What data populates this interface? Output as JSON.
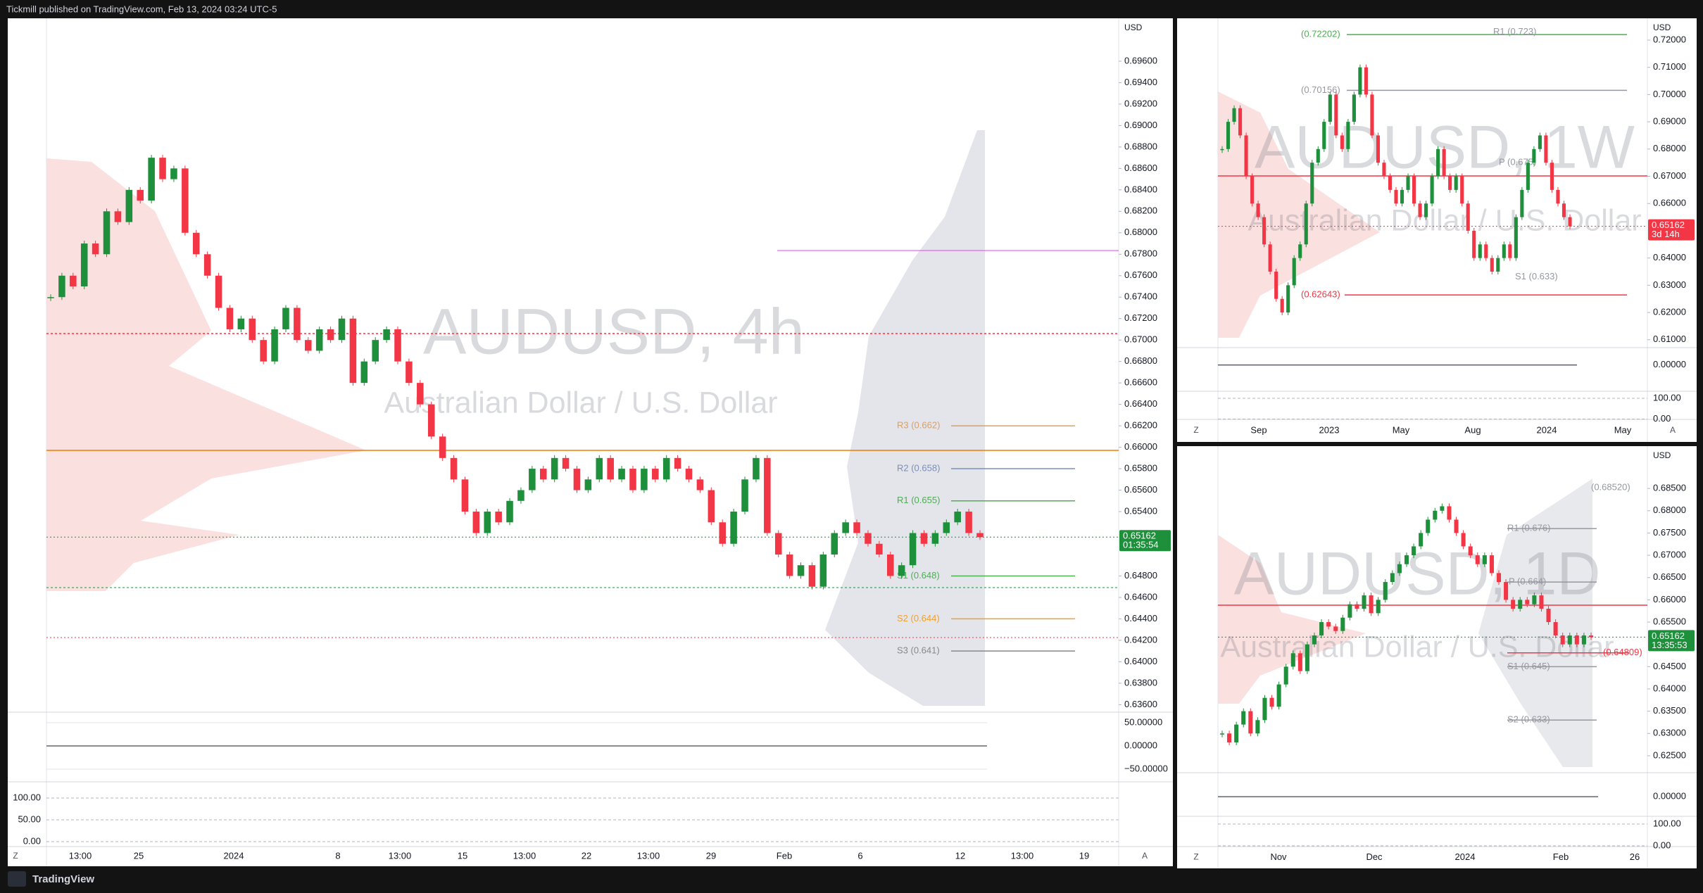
{
  "header": {
    "title": "Tickmill published on TradingView.com, Feb 13, 2024 03:24 UTC-5"
  },
  "footer": {
    "brand": "TradingView"
  },
  "up_color": "#1e8f3a",
  "down_color": "#f23645",
  "panels": [
    {
      "symbol": "AUDUSD, 4h",
      "description": "Australian Dollar / U.S. Dollar",
      "currency": "USD",
      "ylim": [
        0.6353,
        0.7
      ],
      "yticks": [
        {
          "value": 0.696,
          "label": "0.69600"
        },
        {
          "value": 0.694,
          "label": "0.69400"
        },
        {
          "value": 0.692,
          "label": "0.69200"
        },
        {
          "value": 0.69,
          "label": "0.69000"
        },
        {
          "value": 0.688,
          "label": "0.68800"
        },
        {
          "value": 0.686,
          "label": "0.68600"
        },
        {
          "value": 0.684,
          "label": "0.68400"
        },
        {
          "value": 0.682,
          "label": "0.68200"
        },
        {
          "value": 0.68,
          "label": "0.68000"
        },
        {
          "value": 0.678,
          "label": "0.67800"
        },
        {
          "value": 0.676,
          "label": "0.67600"
        },
        {
          "value": 0.674,
          "label": "0.67400"
        },
        {
          "value": 0.672,
          "label": "0.67200"
        },
        {
          "value": 0.67,
          "label": "0.67000"
        },
        {
          "value": 0.668,
          "label": "0.66800"
        },
        {
          "value": 0.666,
          "label": "0.66600"
        },
        {
          "value": 0.664,
          "label": "0.66400"
        },
        {
          "value": 0.662,
          "label": "0.66200"
        },
        {
          "value": 0.66,
          "label": "0.66000"
        },
        {
          "value": 0.658,
          "label": "0.65800"
        },
        {
          "value": 0.656,
          "label": "0.65600"
        },
        {
          "value": 0.654,
          "label": "0.65400"
        },
        {
          "value": 0.648,
          "label": "0.64800"
        },
        {
          "value": 0.646,
          "label": "0.64600"
        },
        {
          "value": 0.644,
          "label": "0.64400"
        },
        {
          "value": 0.642,
          "label": "0.64200"
        },
        {
          "value": 0.64,
          "label": "0.64000"
        },
        {
          "value": 0.638,
          "label": "0.63800"
        },
        {
          "value": 0.636,
          "label": "0.63600"
        }
      ],
      "price_label": 0.65162,
      "price_label_sub": "01:35:54",
      "price_label_color": "#1e8f3a",
      "closes": [
        0.674,
        0.676,
        0.675,
        0.679,
        0.678,
        0.682,
        0.681,
        0.684,
        0.683,
        0.687,
        0.685,
        0.686,
        0.68,
        0.678,
        0.676,
        0.673,
        0.671,
        0.672,
        0.67,
        0.668,
        0.671,
        0.673,
        0.67,
        0.669,
        0.671,
        0.67,
        0.672,
        0.666,
        0.668,
        0.67,
        0.671,
        0.668,
        0.666,
        0.664,
        0.661,
        0.659,
        0.657,
        0.654,
        0.652,
        0.654,
        0.653,
        0.655,
        0.656,
        0.658,
        0.657,
        0.659,
        0.658,
        0.656,
        0.657,
        0.659,
        0.657,
        0.658,
        0.656,
        0.658,
        0.657,
        0.659,
        0.658,
        0.657,
        0.656,
        0.653,
        0.651,
        0.654,
        0.657,
        0.659,
        0.652,
        0.65,
        0.648,
        0.649,
        0.647,
        0.65,
        0.652,
        0.653,
        0.652,
        0.651,
        0.65,
        0.648,
        0.649,
        0.652,
        0.651,
        0.652,
        0.653,
        0.654,
        0.652,
        0.65162
      ],
      "levels": [
        {
          "label": "R3 (0.662)",
          "value": 0.662,
          "color": "#d9a066"
        },
        {
          "label": "R2 (0.658)",
          "value": 0.658,
          "color": "#7b8fb8"
        },
        {
          "label": "R1 (0.655)",
          "value": 0.655,
          "color": "#4caf50"
        },
        {
          "label": "S1 (0.648)",
          "value": 0.648,
          "color": "#4caf50"
        },
        {
          "label": "S2 (0.644)",
          "value": 0.644,
          "color": "#f0a030"
        },
        {
          "label": "S3 (0.641)",
          "value": 0.641,
          "color": "#888888"
        }
      ],
      "osc_ylim": [
        -77.3,
        72.7
      ],
      "osc_ticks": [
        {
          "value": 50,
          "label": "50.00000"
        },
        {
          "value": 0,
          "label": "0.00000"
        },
        {
          "value": -50,
          "label": "−50.00000"
        }
      ],
      "stoch_ylim": [
        -11.3,
        127.4
      ],
      "stoch_ticks": [
        {
          "value": 100,
          "label": "100.00"
        },
        {
          "value": 50,
          "label": "50.00"
        },
        {
          "value": 0,
          "label": "0.00"
        }
      ],
      "time_labels": [
        "13:00",
        "25",
        "2024",
        "8",
        "13:00",
        "15",
        "13:00",
        "22",
        "13:00",
        "29",
        "Feb",
        "6",
        "12",
        "13:00",
        "19"
      ],
      "scale_buttons": [
        "Z",
        "A"
      ]
    },
    {
      "symbol": "AUDUSD, 1W",
      "description": "Australian Dollar / U.S. Dollar",
      "currency": "USD",
      "ylim": [
        0.6071,
        0.728
      ],
      "yticks": [
        {
          "value": 0.72,
          "label": "0.72000"
        },
        {
          "value": 0.71,
          "label": "0.71000"
        },
        {
          "value": 0.7,
          "label": "0.70000"
        },
        {
          "value": 0.69,
          "label": "0.69000"
        },
        {
          "value": 0.68,
          "label": "0.68000"
        },
        {
          "value": 0.67,
          "label": "0.67000"
        },
        {
          "value": 0.66,
          "label": "0.66000"
        },
        {
          "value": 0.64,
          "label": "0.64000"
        },
        {
          "value": 0.63,
          "label": "0.63000"
        },
        {
          "value": 0.62,
          "label": "0.62000"
        },
        {
          "value": 0.61,
          "label": "0.61000"
        }
      ],
      "price_label": 0.65162,
      "price_label_sub": "3d 14h",
      "price_label_color": "#f23645",
      "closes": [
        0.68,
        0.69,
        0.695,
        0.685,
        0.67,
        0.66,
        0.655,
        0.645,
        0.635,
        0.625,
        0.62,
        0.63,
        0.64,
        0.645,
        0.66,
        0.675,
        0.68,
        0.69,
        0.7,
        0.685,
        0.68,
        0.69,
        0.7,
        0.71,
        0.7,
        0.685,
        0.675,
        0.67,
        0.665,
        0.66,
        0.665,
        0.67,
        0.66,
        0.655,
        0.66,
        0.67,
        0.68,
        0.67,
        0.665,
        0.67,
        0.66,
        0.65,
        0.64,
        0.645,
        0.64,
        0.635,
        0.64,
        0.645,
        0.64,
        0.655,
        0.665,
        0.675,
        0.68,
        0.685,
        0.675,
        0.665,
        0.66,
        0.655,
        0.65162
      ],
      "levels": [
        {
          "label": "(0.72202)",
          "value": 0.72202,
          "color": "#4caf50"
        },
        {
          "label": "R1 (0.723)",
          "value": 0.723,
          "color": "#9598a1"
        },
        {
          "label": "(0.70156)",
          "value": 0.70156,
          "color": "#9598a1"
        },
        {
          "label": "P (0.675)",
          "value": 0.675,
          "color": "#9598a1"
        },
        {
          "label": "S1 (0.633)",
          "value": 0.633,
          "color": "#9598a1"
        },
        {
          "label": "(0.62643)",
          "value": 0.62643,
          "color": "#f23645"
        }
      ],
      "osc_ylim": [
        -60,
        40
      ],
      "osc_ticks": [
        {
          "value": 0,
          "label": "0.00000"
        }
      ],
      "stoch_ylim": [
        -1.7,
        133.9
      ],
      "stoch_ticks": [
        {
          "value": 100,
          "label": "100.00"
        },
        {
          "value": 0,
          "label": "0.00"
        }
      ],
      "time_labels": [
        "Sep",
        "2023",
        "May",
        "Aug",
        "2024",
        "May"
      ],
      "scale_buttons": [
        "Z",
        "A"
      ]
    },
    {
      "symbol": "AUDUSD, 1D",
      "description": "Australian Dollar / U.S. Dollar",
      "currency": "USD",
      "ylim": [
        0.6212,
        0.6945
      ],
      "yticks": [
        {
          "value": 0.685,
          "label": "0.68500"
        },
        {
          "value": 0.68,
          "label": "0.68000"
        },
        {
          "value": 0.675,
          "label": "0.67500"
        },
        {
          "value": 0.67,
          "label": "0.67000"
        },
        {
          "value": 0.665,
          "label": "0.66500"
        },
        {
          "value": 0.66,
          "label": "0.66000"
        },
        {
          "value": 0.655,
          "label": "0.65500"
        },
        {
          "value": 0.645,
          "label": "0.64500"
        },
        {
          "value": 0.64,
          "label": "0.64000"
        },
        {
          "value": 0.635,
          "label": "0.63500"
        },
        {
          "value": 0.63,
          "label": "0.63000"
        },
        {
          "value": 0.625,
          "label": "0.62500"
        }
      ],
      "price_label": 0.65162,
      "price_label_sub": "13:35:53",
      "price_label_color": "#1e8f3a",
      "closes": [
        0.63,
        0.628,
        0.632,
        0.635,
        0.63,
        0.633,
        0.638,
        0.636,
        0.641,
        0.645,
        0.648,
        0.644,
        0.65,
        0.652,
        0.655,
        0.654,
        0.653,
        0.656,
        0.659,
        0.658,
        0.661,
        0.657,
        0.66,
        0.664,
        0.666,
        0.668,
        0.67,
        0.672,
        0.675,
        0.678,
        0.68,
        0.681,
        0.678,
        0.675,
        0.672,
        0.67,
        0.668,
        0.67,
        0.666,
        0.664,
        0.66,
        0.658,
        0.66,
        0.659,
        0.661,
        0.658,
        0.655,
        0.652,
        0.65,
        0.652,
        0.65,
        0.652,
        0.65162
      ],
      "levels": [
        {
          "label": "(0.68520)",
          "value": 0.6852,
          "color": "#9598a1"
        },
        {
          "label": "R1 (0.676)",
          "value": 0.676,
          "color": "#9598a1"
        },
        {
          "label": "P (0.664)",
          "value": 0.664,
          "color": "#9598a1"
        },
        {
          "label": "(0.64809)",
          "value": 0.64809,
          "color": "#f23645"
        },
        {
          "label": "S1 (0.645)",
          "value": 0.645,
          "color": "#9598a1"
        },
        {
          "label": "S2 (0.633)",
          "value": 0.633,
          "color": "#9598a1"
        }
      ],
      "osc_ylim": [
        -45,
        55
      ],
      "osc_ticks": [
        {
          "value": 0,
          "label": "0.00000"
        }
      ],
      "stoch_ylim": [
        -3.2,
        135.5
      ],
      "stoch_ticks": [
        {
          "value": 100,
          "label": "100.00"
        },
        {
          "value": 0,
          "label": "0.00"
        }
      ],
      "time_labels": [
        "Nov",
        "Dec",
        "2024",
        "Feb",
        "26"
      ],
      "scale_buttons": [
        "Z"
      ]
    }
  ]
}
